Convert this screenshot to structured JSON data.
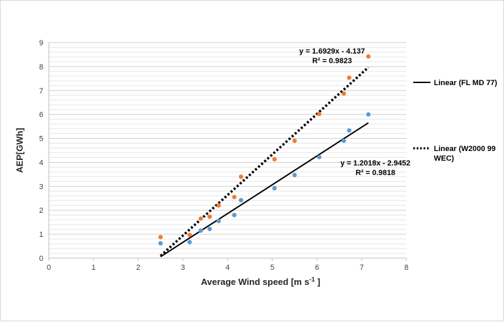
{
  "chart_data": {
    "type": "scatter",
    "xlabel": "Average Wind speed [m s",
    "xlabel_sup": "-1",
    "xlabel_end": " ]",
    "ylabel": "AEP[GWh]",
    "xlim": [
      0,
      8
    ],
    "ylim": [
      0,
      9
    ],
    "x_ticks": [
      0,
      1,
      2,
      3,
      4,
      5,
      6,
      7,
      8
    ],
    "y_ticks": [
      0,
      1,
      2,
      3,
      4,
      5,
      6,
      7,
      8,
      9
    ],
    "grid": true,
    "legend_position": "right",
    "series": [
      {
        "color": "#5b9bd5",
        "marker": "circle",
        "points": [
          [
            2.5,
            0.62
          ],
          [
            3.15,
            0.67
          ],
          [
            3.4,
            1.15
          ],
          [
            3.6,
            1.22
          ],
          [
            3.8,
            1.55
          ],
          [
            4.15,
            1.8
          ],
          [
            4.3,
            2.42
          ],
          [
            5.05,
            2.92
          ],
          [
            5.5,
            3.47
          ],
          [
            6.05,
            4.22
          ],
          [
            6.6,
            4.9
          ],
          [
            6.72,
            5.33
          ],
          [
            7.15,
            6.0
          ]
        ]
      },
      {
        "color": "#ed7d31",
        "marker": "circle",
        "points": [
          [
            2.5,
            0.88
          ],
          [
            3.15,
            0.97
          ],
          [
            3.4,
            1.65
          ],
          [
            3.6,
            1.73
          ],
          [
            3.8,
            2.2
          ],
          [
            4.15,
            2.55
          ],
          [
            4.3,
            3.4
          ],
          [
            5.05,
            4.13
          ],
          [
            5.5,
            4.9
          ],
          [
            6.05,
            6.02
          ],
          [
            6.6,
            6.87
          ],
          [
            6.72,
            7.53
          ],
          [
            7.15,
            8.42
          ]
        ]
      }
    ],
    "trendlines": [
      {
        "name": "Linear (FL MD 77)",
        "style": "solid",
        "color": "#000000",
        "slope": 1.2018,
        "intercept": -2.9452,
        "x_range": [
          2.5,
          7.15
        ],
        "equation": "y = 1.2018x - 2.9452",
        "r2": "R² = 0.9818"
      },
      {
        "name": "Linear (W2000 99 WEC)",
        "name_lines": [
          "Linear (W2000 99",
          "WEC)"
        ],
        "style": "dotted",
        "color": "#000000",
        "slope": 1.6929,
        "intercept": -4.137,
        "x_range": [
          2.5,
          7.15
        ],
        "equation": "y = 1.6929x - 4.137",
        "r2": "R² = 0.9823"
      }
    ]
  }
}
